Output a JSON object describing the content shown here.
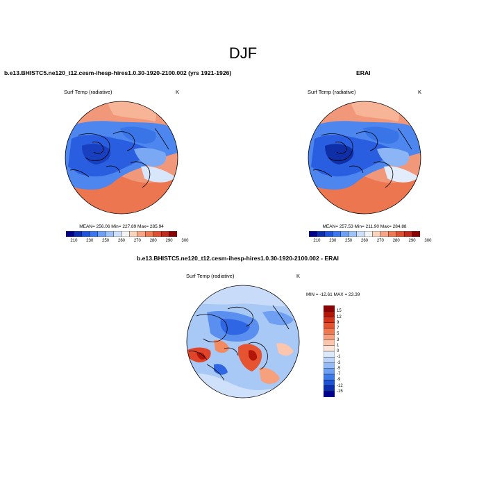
{
  "season": "DJF",
  "panels": [
    {
      "case_title": "b.e13.BHISTC5.ne120_t12.cesm-ihesp-hires1.0.30-1920-2100.002 (yrs 1921-1926)",
      "variable": "Surf Temp (radiative)",
      "units": "K",
      "stats": "MEAN= 256.06  Min= 227.89  Max= 285.94"
    },
    {
      "case_title": "ERAI",
      "variable": "Surf Temp (radiative)",
      "units": "K",
      "stats": "MEAN= 257.53  Min= 211.90  Max= 284.88"
    }
  ],
  "diff_panel": {
    "case_title": "b.e13.BHISTC5.ne120_t12.cesm-ihesp-hires1.0.30-1920-2100.002 - ERAI",
    "variable": "Surf Temp (radiative)",
    "units": "K",
    "stats": "MIN = -12.61 MAX =  23.39"
  },
  "abs_colorbar": {
    "labels": [
      "210",
      "230",
      "250",
      "260",
      "270",
      "280",
      "290",
      "300"
    ],
    "colors": [
      "#00008b",
      "#0b2fb0",
      "#1f55dd",
      "#3b78f0",
      "#6c9ff5",
      "#9dc2f9",
      "#cde0fb",
      "#f3f3f3",
      "#fbd2bb",
      "#f7a585",
      "#ee7a55",
      "#de4f30",
      "#c12a1c",
      "#8b0000"
    ]
  },
  "diff_colorbar": {
    "labels": [
      "15",
      "12",
      "9",
      "7",
      "5",
      "3",
      "1",
      "0",
      "-1",
      "-3",
      "-5",
      "-7",
      "-9",
      "-12",
      "-15"
    ],
    "colors": [
      "#8b0000",
      "#b31509",
      "#d2321a",
      "#e55330",
      "#f07850",
      "#f7a07d",
      "#fbc6ac",
      "#fde6d9",
      "#dbe9fb",
      "#bcd4f8",
      "#96baf5",
      "#6c9ff1",
      "#3e7bea",
      "#1e53d6",
      "#0b2db0",
      "#00008b"
    ]
  }
}
